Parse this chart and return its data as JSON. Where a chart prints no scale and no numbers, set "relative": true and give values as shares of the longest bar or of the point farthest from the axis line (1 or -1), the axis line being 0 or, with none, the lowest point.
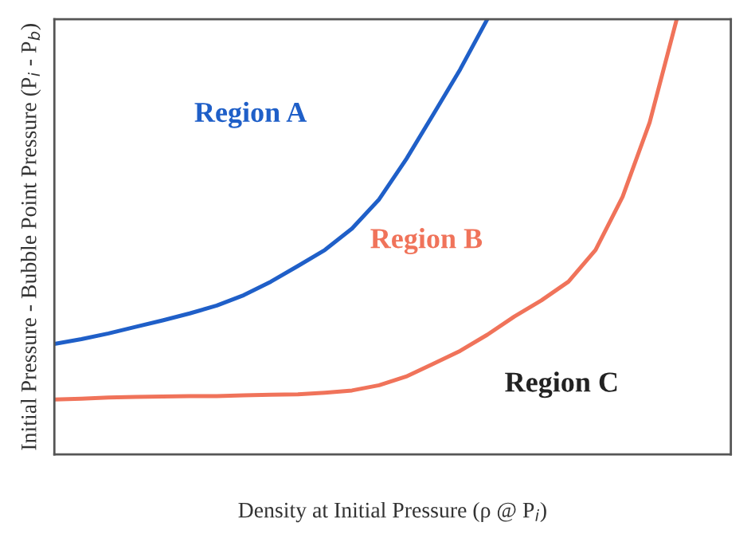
{
  "chart_data": {
    "type": "line",
    "relative": true,
    "xlabel": "Density at Initial Pressure (ρ @ P$_{i}$)",
    "ylabel": "Initial Pressure - Bubble Point Pressure (P$_{i}$ - P$_{b}$)",
    "categories": [
      null,
      null,
      null,
      null,
      null,
      null,
      null,
      null,
      null,
      null,
      null,
      null,
      null,
      null,
      null,
      null,
      null,
      null,
      null,
      null,
      null,
      null,
      null,
      null,
      null,
      null
    ],
    "series": [
      {
        "color": "#1f5fc8",
        "values": [
          0.254,
          0.265,
          0.278,
          0.293,
          0.308,
          0.324,
          0.342,
          0.366,
          0.397,
          0.433,
          0.47,
          0.519,
          0.586,
          0.678,
          0.781,
          0.885,
          1.0,
          null,
          null,
          null,
          null,
          null,
          null,
          null,
          null,
          null
        ]
      },
      {
        "color": "#f0735a",
        "values": [
          0.126,
          0.128,
          0.131,
          0.132,
          0.133,
          0.134,
          0.134,
          0.136,
          0.137,
          0.138,
          0.142,
          0.147,
          0.159,
          0.179,
          0.208,
          0.238,
          0.275,
          0.317,
          0.354,
          0.397,
          0.47,
          0.592,
          0.763,
          1.0,
          null,
          null
        ]
      }
    ],
    "annotations": [
      "Region A",
      "Region B",
      "Region C"
    ]
  }
}
